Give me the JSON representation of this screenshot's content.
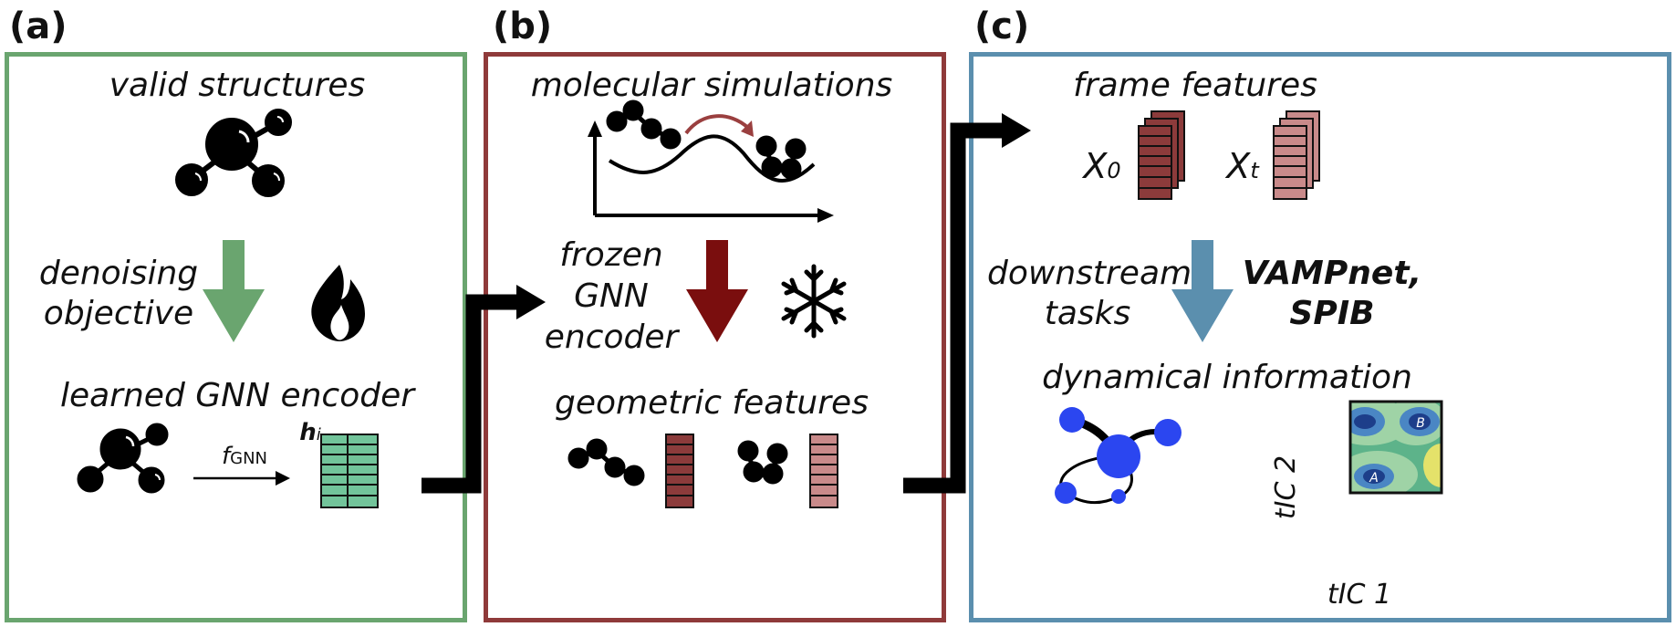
{
  "panels": {
    "a": {
      "letter": "(a)",
      "color": "#6aa56f",
      "top_label": "valid structures",
      "arrow_label_line1": "denoising",
      "arrow_label_line2": "objective",
      "bottom_label": "learned GNN encoder",
      "fn_label_main": "f",
      "fn_label_sub": "GNN",
      "h_label_main": "h",
      "h_label_sub": "i",
      "arrow_color": "#6aa56f",
      "feature_color": "#72c49a"
    },
    "b": {
      "letter": "(b)",
      "color": "#8f3a3a",
      "top_label": "molecular simulations",
      "side_label_line1": "frozen",
      "side_label_line2": "GNN",
      "side_label_line3": "encoder",
      "bottom_label": "geometric features",
      "arrow_color": "#7a0e0e",
      "feature_color_1": "#8c3b3b",
      "feature_color_2": "#c98a8a"
    },
    "c": {
      "letter": "(c)",
      "color": "#5b8fae",
      "top_label": "frame features",
      "x0_main": "X",
      "x0_sub": "0",
      "xt_main": "X",
      "xt_sub": "t",
      "left_label_line1": "downstream",
      "left_label_line2": "tasks",
      "right_label_line1": "VAMPnet,",
      "right_label_line2": "SPIB",
      "bottom_label": "dynamical information",
      "axis_x": "tIC 1",
      "axis_y": "tIC 2",
      "state_a": "A",
      "state_b": "B",
      "arrow_color": "#5b8fae",
      "node_color": "#2b46f0"
    }
  }
}
